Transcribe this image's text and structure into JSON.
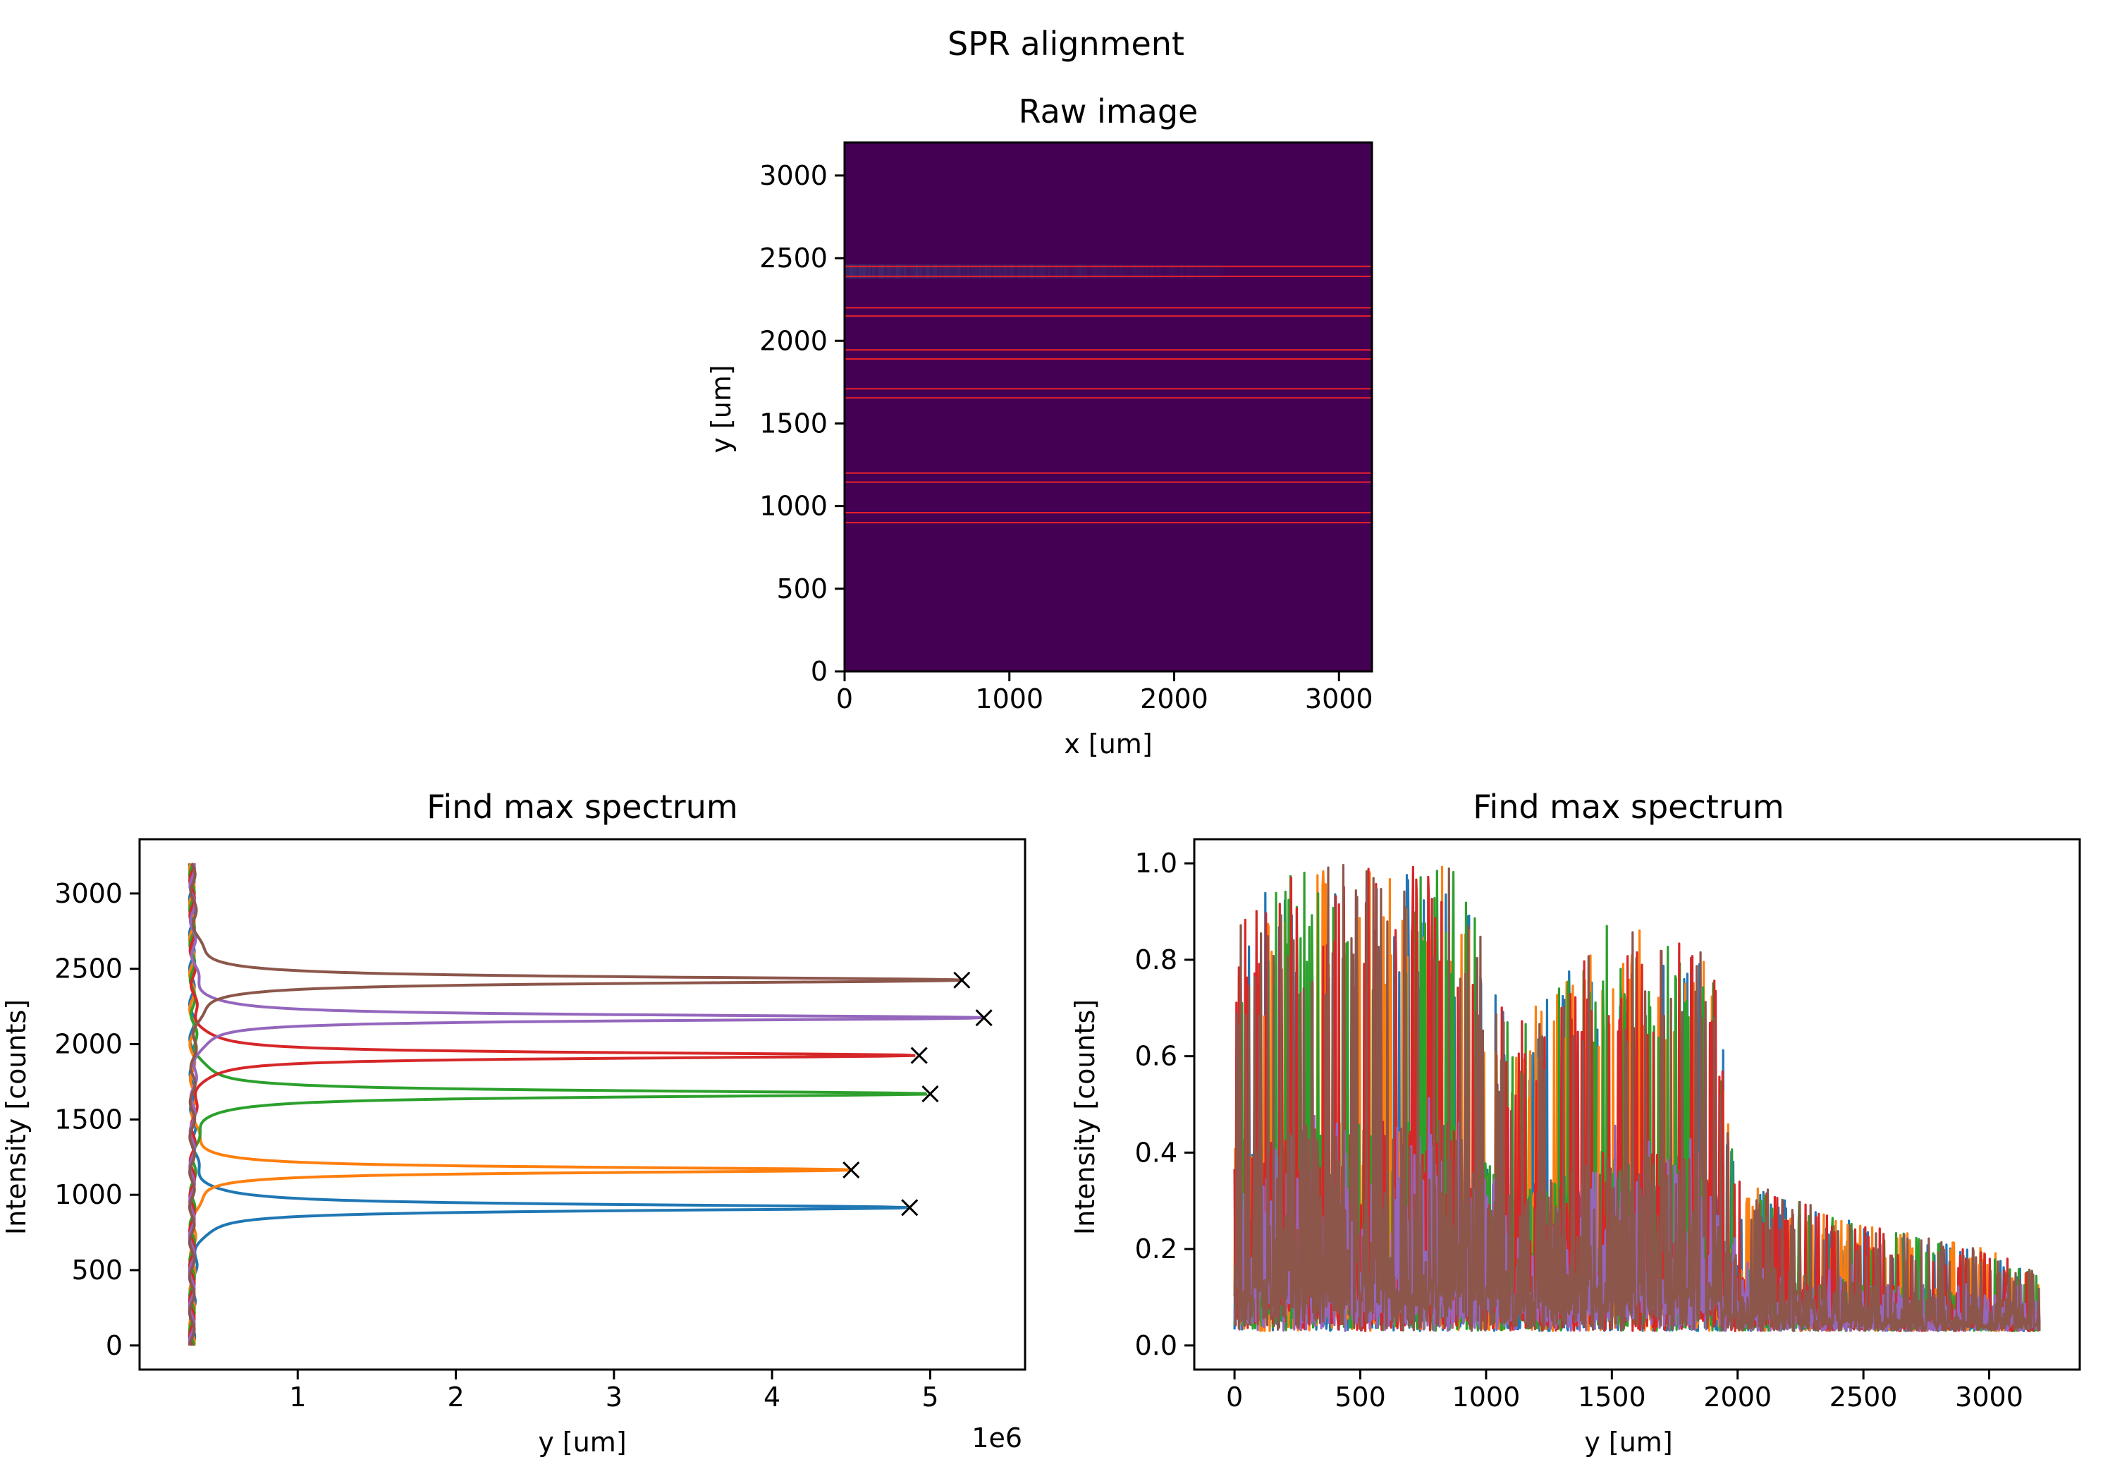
{
  "figure": {
    "suptitle": "SPR alignment"
  },
  "chart_data": [
    {
      "type": "heatmap",
      "title": "Raw image",
      "xlabel": "x [um]",
      "ylabel": "y [um]",
      "xlim": [
        0,
        3200
      ],
      "ylim": [
        0,
        3200
      ],
      "xticks": [
        0,
        1000,
        2000,
        3000
      ],
      "yticks": [
        0,
        500,
        1000,
        1500,
        2000,
        2500,
        3000
      ],
      "background_color": "#440154",
      "bright_band": {
        "y": 2420,
        "x_range": [
          0,
          2300
        ],
        "color": "#3b5a8c"
      },
      "overlay_lines": {
        "color": "#e8202a",
        "y_values": [
          2450,
          2390,
          2200,
          2150,
          1945,
          1890,
          1710,
          1655,
          1200,
          1145,
          960,
          900
        ]
      }
    },
    {
      "type": "line",
      "title": "Find max spectrum",
      "xlabel": "y [um]",
      "ylabel": "Intensity [counts]",
      "x_offset_label": "1e6",
      "xlim": [
        0,
        5600000
      ],
      "ylim": [
        -160,
        3360
      ],
      "xticks": [
        1000000,
        2000000,
        3000000,
        4000000,
        5000000
      ],
      "xtick_labels": [
        "1",
        "2",
        "3",
        "4",
        "5"
      ],
      "yticks": [
        0,
        500,
        1000,
        1500,
        2000,
        2500,
        3000
      ],
      "baseline_x": 330000,
      "series": [
        {
          "color": "#1f77b4",
          "peak_y": 915,
          "peak_x": 4870000,
          "width": 100
        },
        {
          "color": "#ff7f0e",
          "peak_y": 1165,
          "peak_x": 4500000,
          "width": 90
        },
        {
          "color": "#2ca02c",
          "peak_y": 1670,
          "peak_x": 5000000,
          "width": 100
        },
        {
          "color": "#d62728",
          "peak_y": 1925,
          "peak_x": 4930000,
          "width": 90
        },
        {
          "color": "#9467bd",
          "peak_y": 2175,
          "peak_x": 5340000,
          "width": 90
        },
        {
          "color": "#8c564b",
          "peak_y": 2425,
          "peak_x": 5200000,
          "width": 100
        }
      ],
      "peak_marker": "x"
    },
    {
      "type": "line",
      "title": "Find max spectrum",
      "xlabel": "y [um]",
      "ylabel": "Intensity [counts]",
      "xlim": [
        -160,
        3360
      ],
      "ylim": [
        -0.05,
        1.05
      ],
      "xticks": [
        0,
        500,
        1000,
        1500,
        2000,
        2500,
        3000
      ],
      "yticks": [
        0.0,
        0.2,
        0.4,
        0.6,
        0.8,
        1.0
      ],
      "ytick_labels": [
        "0.0",
        "0.2",
        "0.4",
        "0.6",
        "0.8",
        "1.0"
      ],
      "series_colors": [
        "#1f77b4",
        "#ff7f0e",
        "#2ca02c",
        "#d62728",
        "#9467bd",
        "#8c564b"
      ],
      "envelope": [
        [
          0,
          0.9
        ],
        [
          300,
          1.0
        ],
        [
          500,
          1.0
        ],
        [
          800,
          1.0
        ],
        [
          900,
          1.0
        ],
        [
          1100,
          0.65
        ],
        [
          1500,
          0.89
        ],
        [
          1900,
          0.81
        ],
        [
          2000,
          0.35
        ],
        [
          2500,
          0.25
        ],
        [
          3000,
          0.2
        ],
        [
          3200,
          0.15
        ]
      ],
      "floor": 0.03
    }
  ]
}
